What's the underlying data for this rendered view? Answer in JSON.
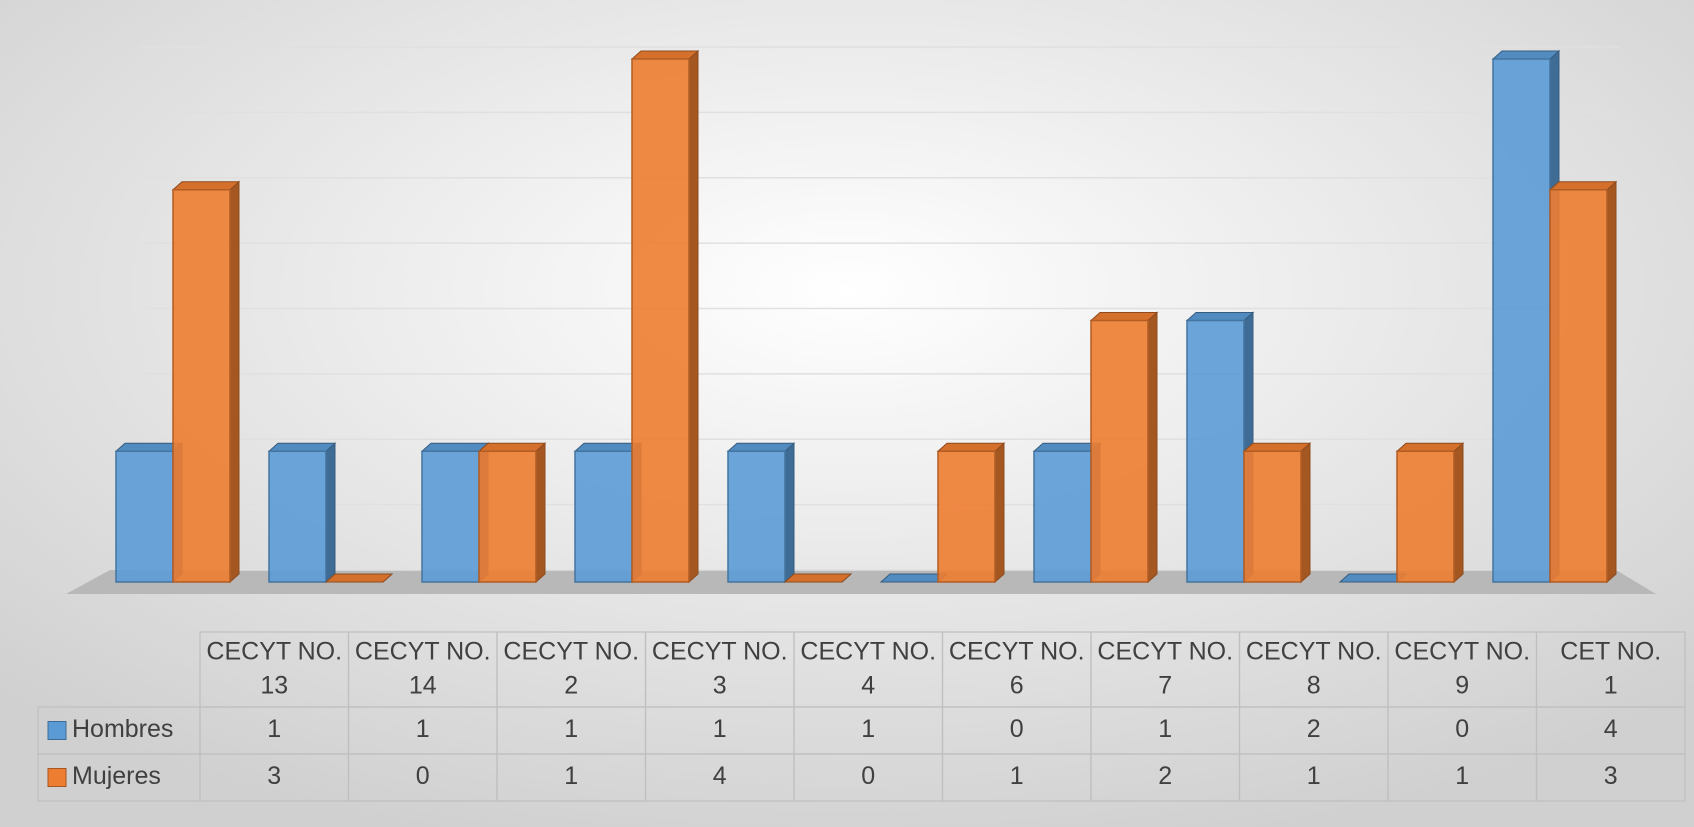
{
  "chart_data": {
    "type": "bar",
    "categories": [
      "CECYT NO. 13",
      "CECYT NO. 14",
      "CECYT NO. 2",
      "CECYT NO. 3",
      "CECYT NO. 4",
      "CECYT NO. 6",
      "CECYT NO. 7",
      "CECYT NO. 8",
      "CECYT NO. 9",
      "CET NO. 1"
    ],
    "series": [
      {
        "name": "Hombres",
        "color": "#5b9bd5",
        "values": [
          1,
          1,
          1,
          1,
          1,
          0,
          1,
          2,
          0,
          4
        ]
      },
      {
        "name": "Mujeres",
        "color": "#ed7d31",
        "values": [
          3,
          0,
          1,
          4,
          0,
          1,
          2,
          1,
          1,
          3
        ]
      }
    ],
    "ylim": [
      0,
      4
    ],
    "yticks": [
      0,
      0.5,
      1,
      1.5,
      2,
      2.5,
      3,
      3.5,
      4
    ],
    "grid": true
  }
}
